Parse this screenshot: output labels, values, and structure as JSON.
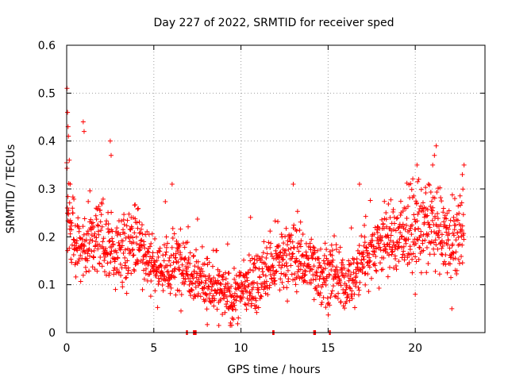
{
  "chart_data": {
    "type": "scatter",
    "title": "Day 227 of 2022, SRMTID for receiver sped",
    "xlabel": "GPS time / hours",
    "ylabel": "SRMTID / TECUs",
    "xlim": [
      0,
      24
    ],
    "ylim": [
      0,
      0.6
    ],
    "xticks": [
      0,
      5,
      10,
      15,
      20
    ],
    "xtick_labels": [
      "0",
      "5",
      "10",
      "15",
      "20"
    ],
    "yticks": [
      0,
      0.1,
      0.2,
      0.3,
      0.4,
      0.5,
      0.6
    ],
    "ytick_labels": [
      "0",
      "0.1",
      "0.2",
      "0.3",
      "0.4",
      "0.5",
      "0.6"
    ],
    "grid": true,
    "marker": "+",
    "color": "#ff0000",
    "trend": {
      "description": "approximate central level of SRMTID vs time (hours, TECU)",
      "x": [
        0,
        0.2,
        0.5,
        1,
        2,
        3,
        4,
        5,
        6,
        6.5,
        7,
        8,
        9,
        9.5,
        10,
        11,
        12,
        13,
        14,
        15,
        16,
        16.5,
        17,
        18,
        19,
        20,
        21,
        22,
        22.8
      ],
      "y": [
        0.28,
        0.22,
        0.18,
        0.18,
        0.2,
        0.16,
        0.2,
        0.14,
        0.13,
        0.15,
        0.14,
        0.1,
        0.08,
        0.07,
        0.09,
        0.11,
        0.14,
        0.16,
        0.14,
        0.12,
        0.1,
        0.11,
        0.16,
        0.19,
        0.2,
        0.21,
        0.22,
        0.19,
        0.2
      ]
    },
    "zero_points_x": [
      6.9,
      7.3,
      7.4,
      11.85,
      14.2,
      14.25,
      15.1
    ],
    "sample_points": [
      {
        "x": 0.02,
        "y": 0.51
      },
      {
        "x": 0.05,
        "y": 0.46
      },
      {
        "x": 0.08,
        "y": 0.43
      },
      {
        "x": 0.1,
        "y": 0.41
      },
      {
        "x": 0.15,
        "y": 0.36
      },
      {
        "x": 0.2,
        "y": 0.31
      },
      {
        "x": 0.95,
        "y": 0.44
      },
      {
        "x": 1.0,
        "y": 0.42
      },
      {
        "x": 2.5,
        "y": 0.4
      },
      {
        "x": 2.55,
        "y": 0.37
      },
      {
        "x": 6.05,
        "y": 0.31
      },
      {
        "x": 9.5,
        "y": 0.03
      },
      {
        "x": 9.4,
        "y": 0.02
      },
      {
        "x": 11.9,
        "y": 0.0
      },
      {
        "x": 13.0,
        "y": 0.31
      },
      {
        "x": 16.8,
        "y": 0.31
      },
      {
        "x": 20.1,
        "y": 0.35
      },
      {
        "x": 20.2,
        "y": 0.32
      },
      {
        "x": 21.2,
        "y": 0.39
      },
      {
        "x": 21.1,
        "y": 0.37
      },
      {
        "x": 21.0,
        "y": 0.35
      },
      {
        "x": 22.8,
        "y": 0.35
      },
      {
        "x": 22.7,
        "y": 0.33
      },
      {
        "x": 20.0,
        "y": 0.08
      },
      {
        "x": 22.1,
        "y": 0.05
      }
    ]
  }
}
